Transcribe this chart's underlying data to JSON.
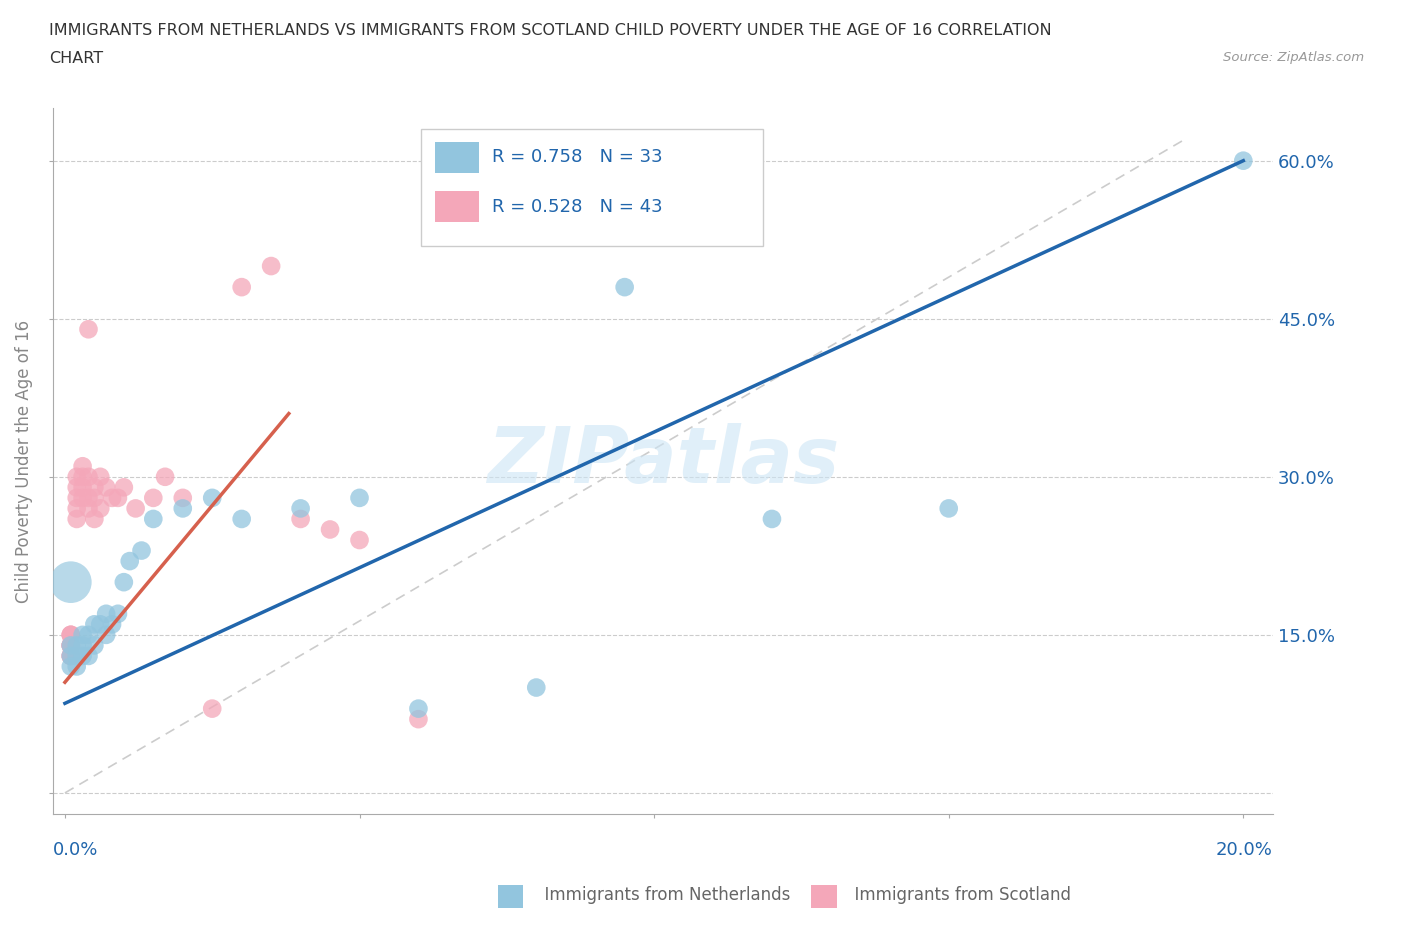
{
  "title_line1": "IMMIGRANTS FROM NETHERLANDS VS IMMIGRANTS FROM SCOTLAND CHILD POVERTY UNDER THE AGE OF 16 CORRELATION",
  "title_line2": "CHART",
  "source_text": "Source: ZipAtlas.com",
  "ylabel": "Child Poverty Under the Age of 16",
  "watermark": "ZIPatlas",
  "legend_r1": "R = 0.758",
  "legend_n1": "N = 33",
  "legend_r2": "R = 0.528",
  "legend_n2": "N = 43",
  "color_blue": "#92c5de",
  "color_pink": "#f4a7b9",
  "color_blue_line": "#2166ac",
  "color_pink_line": "#d6604d",
  "color_text_blue": "#2166ac",
  "xlim": [
    -0.002,
    0.205
  ],
  "ylim": [
    -0.02,
    0.65
  ],
  "xticks": [
    0.0,
    0.05,
    0.1,
    0.15,
    0.2
  ],
  "yticks": [
    0.0,
    0.15,
    0.3,
    0.45,
    0.6
  ],
  "netherlands_x": [
    0.001,
    0.001,
    0.001,
    0.002,
    0.002,
    0.002,
    0.003,
    0.003,
    0.003,
    0.004,
    0.004,
    0.005,
    0.005,
    0.006,
    0.007,
    0.007,
    0.008,
    0.009,
    0.01,
    0.011,
    0.013,
    0.015,
    0.02,
    0.025,
    0.03,
    0.04,
    0.05,
    0.06,
    0.08,
    0.095,
    0.12,
    0.15,
    0.2
  ],
  "netherlands_y": [
    0.14,
    0.13,
    0.12,
    0.14,
    0.12,
    0.13,
    0.15,
    0.14,
    0.13,
    0.15,
    0.13,
    0.16,
    0.14,
    0.16,
    0.17,
    0.15,
    0.16,
    0.17,
    0.2,
    0.22,
    0.23,
    0.26,
    0.27,
    0.28,
    0.26,
    0.27,
    0.28,
    0.08,
    0.1,
    0.48,
    0.26,
    0.27,
    0.6
  ],
  "netherlands_size_large": 0.001,
  "scotland_x": [
    0.001,
    0.001,
    0.001,
    0.001,
    0.001,
    0.001,
    0.001,
    0.001,
    0.001,
    0.001,
    0.002,
    0.002,
    0.002,
    0.002,
    0.002,
    0.003,
    0.003,
    0.003,
    0.003,
    0.004,
    0.004,
    0.004,
    0.004,
    0.005,
    0.005,
    0.005,
    0.006,
    0.006,
    0.007,
    0.008,
    0.009,
    0.01,
    0.012,
    0.015,
    0.017,
    0.02,
    0.025,
    0.03,
    0.035,
    0.04,
    0.045,
    0.05,
    0.06
  ],
  "scotland_y": [
    0.14,
    0.15,
    0.14,
    0.13,
    0.14,
    0.15,
    0.13,
    0.14,
    0.15,
    0.13,
    0.28,
    0.26,
    0.29,
    0.27,
    0.3,
    0.28,
    0.29,
    0.3,
    0.31,
    0.27,
    0.28,
    0.44,
    0.3,
    0.28,
    0.26,
    0.29,
    0.27,
    0.3,
    0.29,
    0.28,
    0.28,
    0.29,
    0.27,
    0.28,
    0.3,
    0.28,
    0.08,
    0.48,
    0.5,
    0.26,
    0.25,
    0.24,
    0.07
  ]
}
